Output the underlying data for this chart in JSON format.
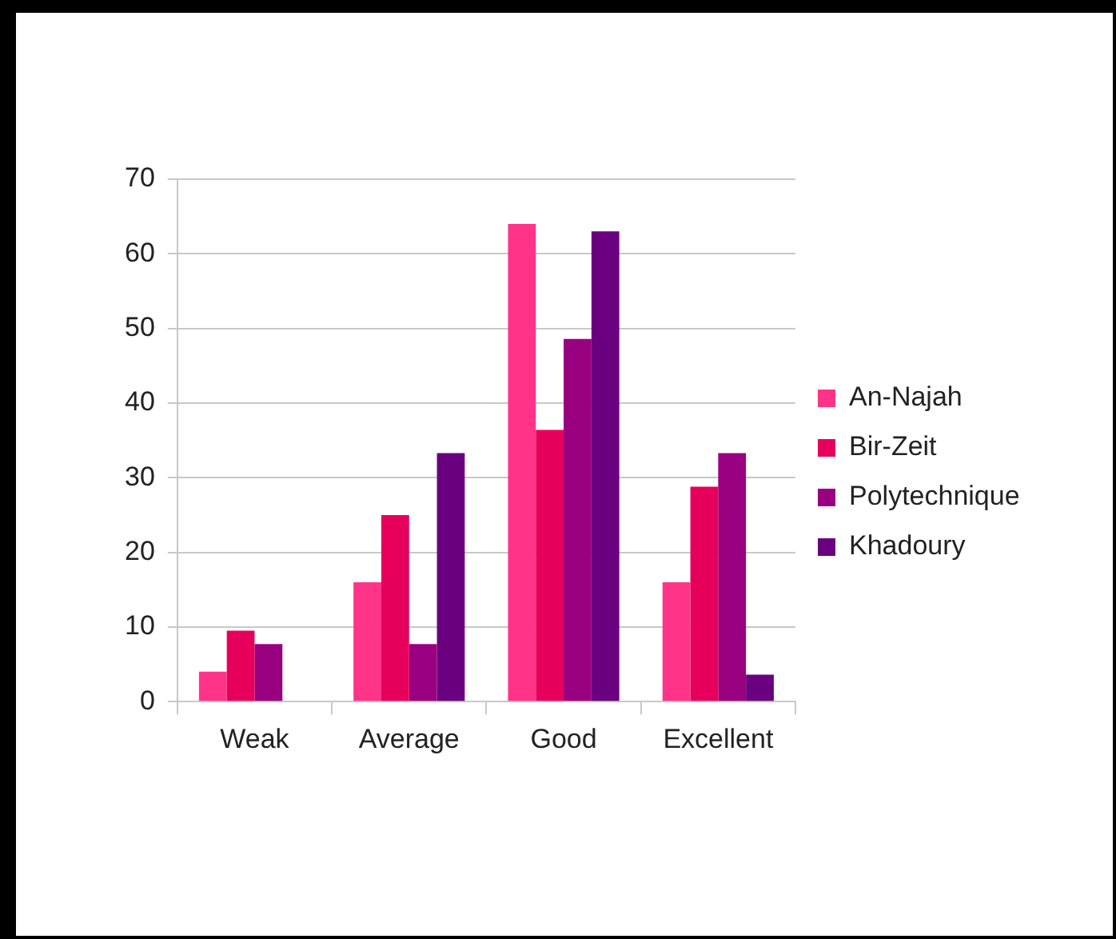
{
  "chart_data": {
    "type": "bar",
    "categories": [
      "Weak",
      "Average",
      "Good",
      "Excellent"
    ],
    "series": [
      {
        "name": "An-Najah",
        "color": "#ff3388",
        "values": [
          4,
          16,
          64,
          16
        ]
      },
      {
        "name": "Bir-Zeit",
        "color": "#e6005c",
        "values": [
          9.5,
          25,
          36.4,
          28.8
        ]
      },
      {
        "name": "Polytechnique",
        "color": "#990080",
        "values": [
          7.7,
          7.7,
          48.6,
          33.3
        ]
      },
      {
        "name": "Khadoury",
        "color": "#6a0080",
        "values": [
          null,
          33.3,
          63,
          3.6
        ]
      }
    ],
    "ylim": [
      0,
      70
    ],
    "yticks": [
      0,
      10,
      20,
      30,
      40,
      50,
      60,
      70
    ],
    "grid": "y",
    "legend": "right"
  }
}
